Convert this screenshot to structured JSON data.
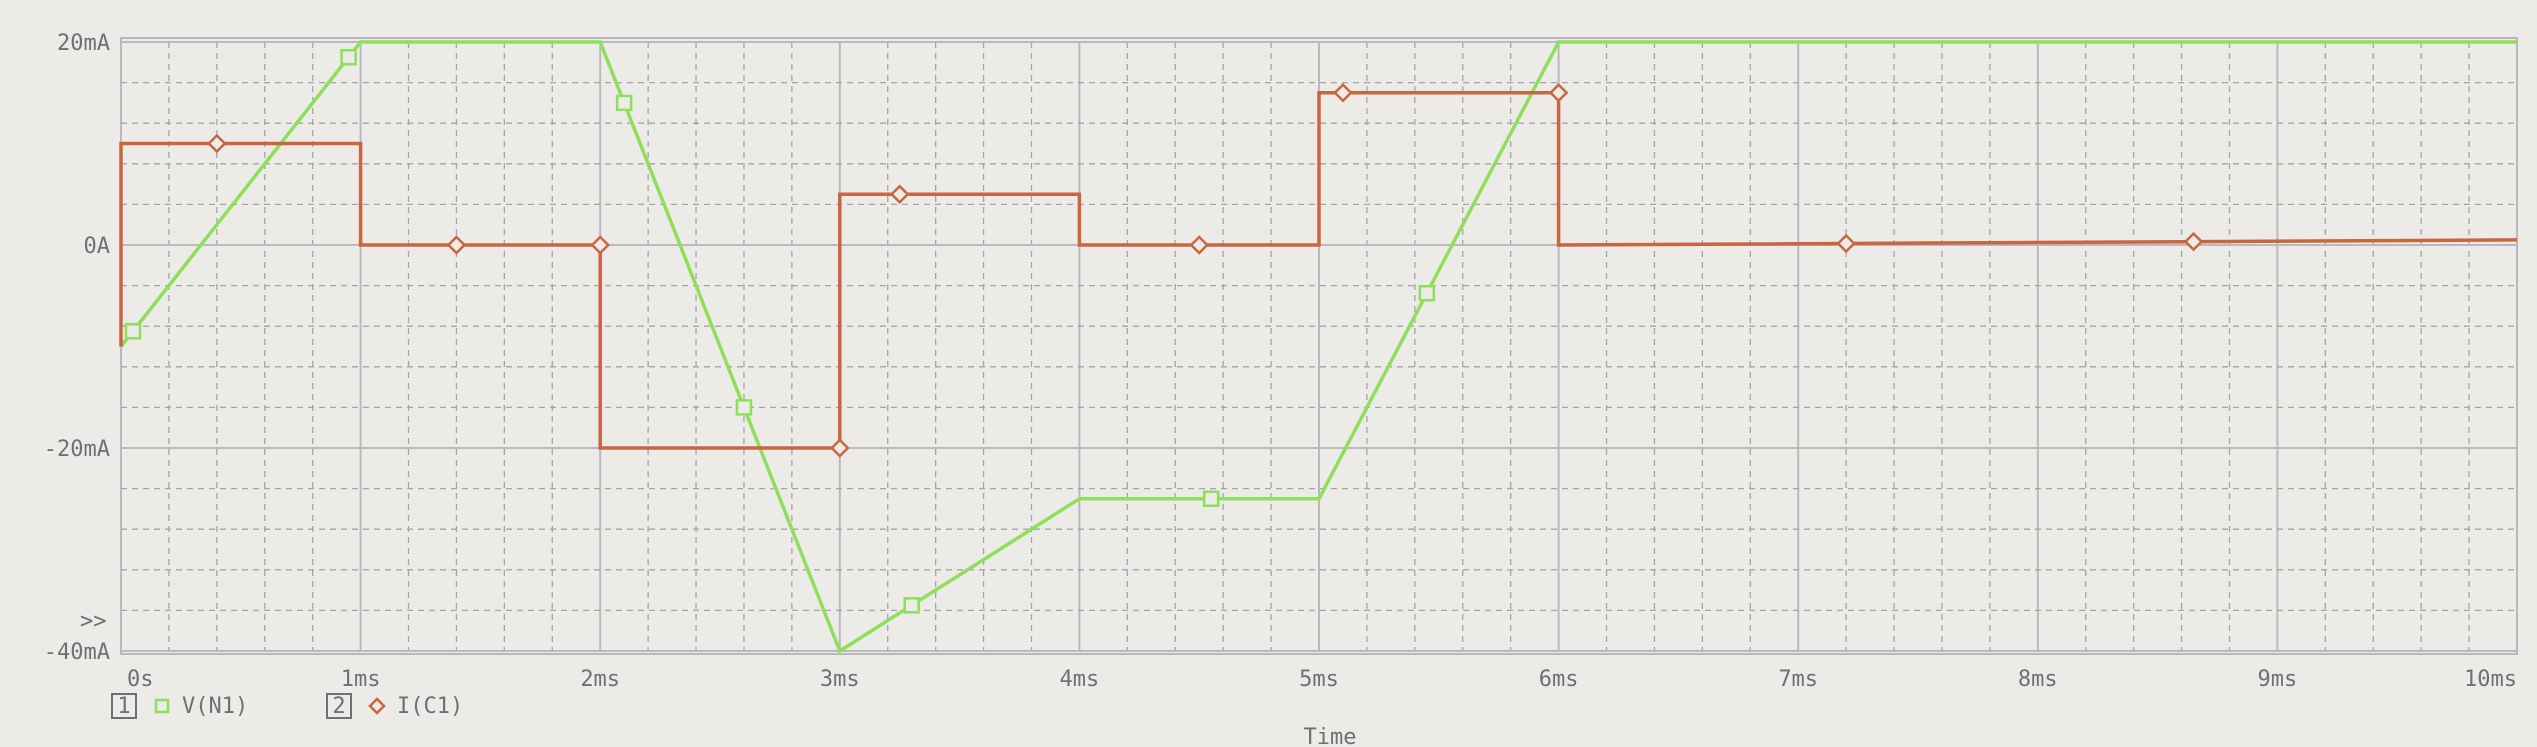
{
  "chart_data": {
    "type": "line",
    "xlabel": "Time",
    "ylabel": "",
    "xlim": [
      0,
      10
    ],
    "ylim": [
      -40,
      20
    ],
    "x_unit": "ms",
    "y_unit": "mA",
    "x_ticks": [
      {
        "value": 0,
        "label": "0s"
      },
      {
        "value": 1,
        "label": "1ms"
      },
      {
        "value": 2,
        "label": "2ms"
      },
      {
        "value": 3,
        "label": "3ms"
      },
      {
        "value": 4,
        "label": "4ms"
      },
      {
        "value": 5,
        "label": "5ms"
      },
      {
        "value": 6,
        "label": "6ms"
      },
      {
        "value": 7,
        "label": "7ms"
      },
      {
        "value": 8,
        "label": "8ms"
      },
      {
        "value": 9,
        "label": "9ms"
      },
      {
        "value": 10,
        "label": "10ms"
      }
    ],
    "y_ticks": [
      {
        "value": 20,
        "label": "20mA"
      },
      {
        "value": 0,
        "label": "0A"
      },
      {
        "value": -20,
        "label": "-20mA"
      },
      {
        "value": -40,
        "label": "-40mA"
      }
    ],
    "axis_marker": ">>",
    "grid": true,
    "series": [
      {
        "name": "V(N1)",
        "legend_index": "1",
        "marker": "square",
        "color": "#8ee05a",
        "points": [
          [
            0,
            -10
          ],
          [
            1,
            20
          ],
          [
            2,
            20
          ],
          [
            3,
            -40
          ],
          [
            4,
            -25
          ],
          [
            5,
            -25
          ],
          [
            6,
            20
          ],
          [
            10,
            20
          ]
        ],
        "marker_x": [
          0.05,
          0.95,
          2.1,
          2.6,
          3.3,
          4.55,
          5.45
        ]
      },
      {
        "name": "I(C1)",
        "legend_index": "2",
        "marker": "diamond",
        "color": "#c8663f",
        "points": [
          [
            0,
            -10
          ],
          [
            0,
            10
          ],
          [
            1,
            10
          ],
          [
            1,
            0
          ],
          [
            2,
            0
          ],
          [
            2,
            -20
          ],
          [
            3,
            -20
          ],
          [
            3,
            5
          ],
          [
            4,
            5
          ],
          [
            4,
            0
          ],
          [
            5,
            0
          ],
          [
            5,
            15
          ],
          [
            6,
            15
          ],
          [
            6,
            0
          ],
          [
            10,
            0.5
          ]
        ],
        "marker_x": [
          0.4,
          1.4,
          2.0,
          3.0,
          3.25,
          4.5,
          5.1,
          6.0,
          7.2,
          8.65
        ]
      }
    ]
  }
}
